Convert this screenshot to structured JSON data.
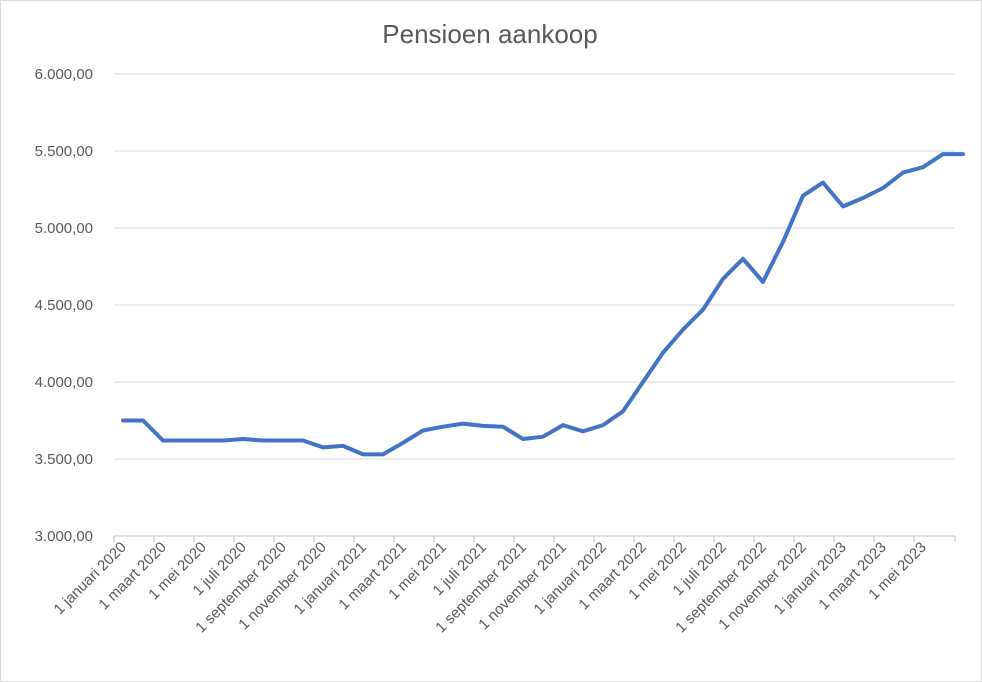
{
  "chart_data": {
    "type": "line",
    "title": "Pensioen aankoop",
    "xlabel": "",
    "ylabel": "",
    "ylim": [
      3000,
      6000
    ],
    "yticks": [
      3000,
      3500,
      4000,
      4500,
      5000,
      5500,
      6000
    ],
    "ytick_labels": [
      "3.000,00",
      "3.500,00",
      "4.000,00",
      "4.500,00",
      "5.000,00",
      "5.500,00",
      "6.000,00"
    ],
    "grid": true,
    "legend": "none",
    "x": [
      "2020-01",
      "2020-02",
      "2020-03",
      "2020-04",
      "2020-05",
      "2020-06",
      "2020-07",
      "2020-08",
      "2020-09",
      "2020-10",
      "2020-11",
      "2020-12",
      "2021-01",
      "2021-02",
      "2021-03",
      "2021-04",
      "2021-05",
      "2021-06",
      "2021-07",
      "2021-08",
      "2021-09",
      "2021-10",
      "2021-11",
      "2021-12",
      "2022-01",
      "2022-02",
      "2022-03",
      "2022-04",
      "2022-05",
      "2022-06",
      "2022-07",
      "2022-08",
      "2022-09",
      "2022-10",
      "2022-11",
      "2022-12",
      "2023-01",
      "2023-02",
      "2023-03",
      "2023-04",
      "2023-05",
      "2023-06",
      "2023-07"
    ],
    "xtick_labels": [
      "1 januari 2020",
      "1 maart 2020",
      "1 mei 2020",
      "1 juli 2020",
      "1 september 2020",
      "1 november 2020",
      "1 januari 2021",
      "1 maart 2021",
      "1 mei 2021",
      "1 juli 2021",
      "1 september 2021",
      "1 november 2021",
      "1 januari 2022",
      "1 maart 2022",
      "1 mei 2022",
      "1 juli 2022",
      "1 september 2022",
      "1 november 2022",
      "1 januari 2023",
      "1 maart 2023",
      "1 mei 2023"
    ],
    "series": [
      {
        "color": "#4472c4",
        "values": [
          3750,
          3750,
          3620,
          3620,
          3620,
          3620,
          3630,
          3620,
          3620,
          3620,
          3575,
          3585,
          3530,
          3530,
          3605,
          3685,
          3710,
          3730,
          3715,
          3710,
          3630,
          3645,
          3720,
          3680,
          3720,
          3810,
          4000,
          4190,
          4340,
          4470,
          4670,
          4800,
          4650,
          4910,
          5210,
          5295,
          5140,
          5195,
          5260,
          5360,
          5395,
          5480,
          5480
        ]
      }
    ]
  }
}
